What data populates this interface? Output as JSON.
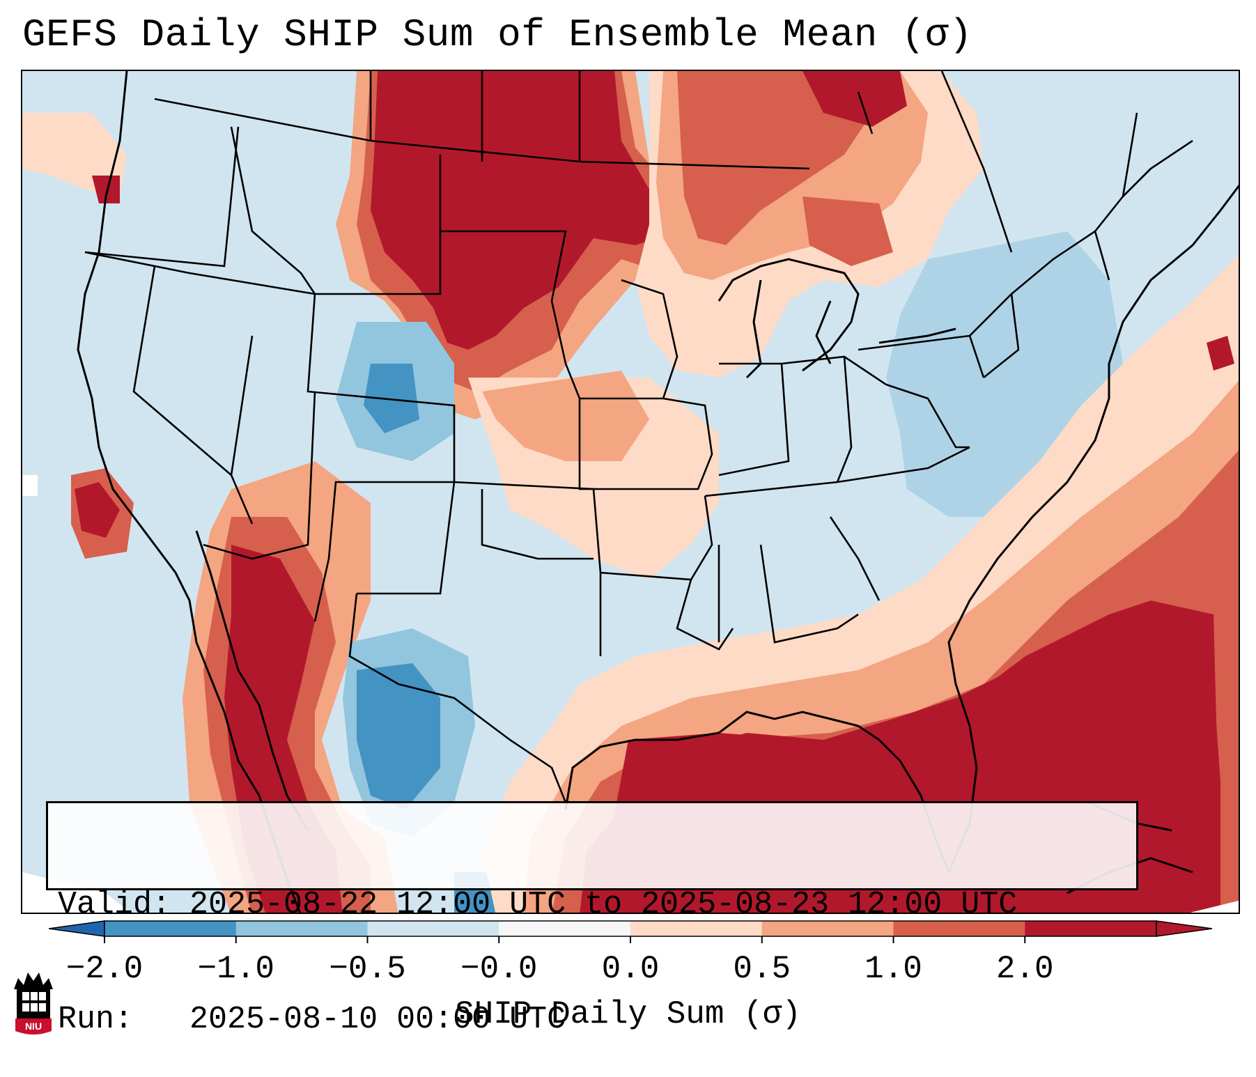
{
  "title": "GEFS Daily SHIP Sum of Ensemble Mean (σ)",
  "info": {
    "valid": "Valid: 2025-08-22 12:00 UTC to 2025-08-23 12:00 UTC",
    "run": "Run:   2025-08-10 00:00 UTC"
  },
  "colorbar": {
    "label": "SHIP Daily Sum (σ)",
    "ticks": [
      "−2.0",
      "−1.0",
      "−0.5",
      "−0.0",
      "0.0",
      "0.5",
      "1.0",
      "2.0"
    ],
    "colors": [
      "#4393c3",
      "#92c5de",
      "#d1e5f0",
      "#f7f7f7",
      "#fddbc7",
      "#f4a582",
      "#d6604d",
      "#b2182b"
    ],
    "underflow_color": "#2166ac",
    "overflow_color": "#b2182b"
  },
  "logo": {
    "text": "NIU"
  }
}
